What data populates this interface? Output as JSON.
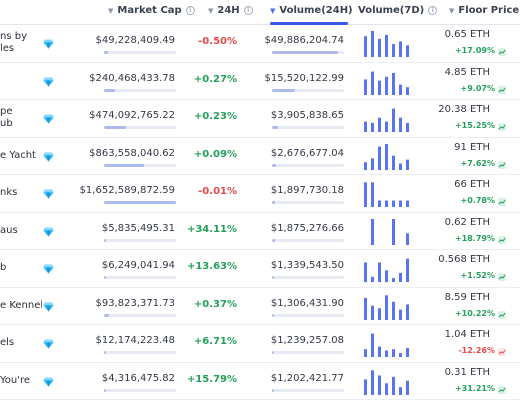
{
  "header": {
    "market_cap": "Market Cap",
    "change_24h": "24H",
    "volume_24h": "Volume(24H)",
    "volume_7d": "Volume(7D)",
    "floor_price": "Floor Price"
  },
  "colors": {
    "accent": "#3a57e8",
    "positive": "#24a05a",
    "negative": "#e5484d",
    "sparkline": "#5a73f0"
  },
  "rows": [
    {
      "name_lines": [
        "ns by",
        "les"
      ],
      "market_cap": "$49,228,409.49",
      "market_cap_bar": 0.05,
      "change": "-0.50%",
      "change_dir": "neg",
      "volume": "$49,886,204.74",
      "volume_bar": 0.92,
      "spark": [
        0.8,
        1.0,
        0.7,
        0.85,
        0.5,
        0.6,
        0.45
      ],
      "floor": "0.65 ETH",
      "floor_change": "+17.09%",
      "floor_dir": "up"
    },
    {
      "name_lines": [
        ""
      ],
      "market_cap": "$240,468,433.78",
      "market_cap_bar": 0.15,
      "change": "+0.27%",
      "change_dir": "pos",
      "volume": "$15,520,122.99",
      "volume_bar": 0.32,
      "spark": [
        0.6,
        0.9,
        0.55,
        0.7,
        0.85,
        0.4,
        0.3
      ],
      "floor": "4.85 ETH",
      "floor_change": "+9.07%",
      "floor_dir": "up"
    },
    {
      "name_lines": [
        "pe",
        "ub"
      ],
      "market_cap": "$474,092,765.22",
      "market_cap_bar": 0.3,
      "change": "+0.23%",
      "change_dir": "pos",
      "volume": "$3,905,838.65",
      "volume_bar": 0.08,
      "spark": [
        0.4,
        0.35,
        0.55,
        0.4,
        0.9,
        0.55,
        0.35
      ],
      "floor": "20.38 ETH",
      "floor_change": "+15.25%",
      "floor_dir": "up"
    },
    {
      "name_lines": [
        "e Yacht"
      ],
      "market_cap": "$863,558,040.62",
      "market_cap_bar": 0.55,
      "change": "+0.09%",
      "change_dir": "pos",
      "volume": "$2,676,677.04",
      "volume_bar": 0.06,
      "spark": [
        0.3,
        0.45,
        0.9,
        1.0,
        0.55,
        0.25,
        0.4
      ],
      "floor": "91 ETH",
      "floor_change": "+7.62%",
      "floor_dir": "up"
    },
    {
      "name_lines": [
        "nks"
      ],
      "market_cap": "$1,652,589,872.59",
      "market_cap_bar": 1.0,
      "change": "-0.01%",
      "change_dir": "neg",
      "volume": "$1,897,730.18",
      "volume_bar": 0.04,
      "spark": [
        0.95,
        0.95,
        0.25,
        0.25,
        0.25,
        0.25,
        0.25
      ],
      "floor": "66 ETH",
      "floor_change": "+0.78%",
      "floor_dir": "up"
    },
    {
      "name_lines": [
        "aus"
      ],
      "market_cap": "$5,835,495.31",
      "market_cap_bar": 0.01,
      "change": "+34.11%",
      "change_dir": "pos",
      "volume": "$1,875,276.66",
      "volume_bar": 0.04,
      "spark": [
        0.0,
        1.0,
        0.0,
        0.0,
        1.0,
        0.0,
        0.45
      ],
      "floor": "0.62 ETH",
      "floor_change": "+18.79%",
      "floor_dir": "up"
    },
    {
      "name_lines": [
        "b"
      ],
      "market_cap": "$6,249,041.94",
      "market_cap_bar": 0.01,
      "change": "+13.63%",
      "change_dir": "pos",
      "volume": "$1,339,543.50",
      "volume_bar": 0.03,
      "spark": [
        0.75,
        0.2,
        0.75,
        0.45,
        0.15,
        0.35,
        0.9
      ],
      "floor": "0.568 ETH",
      "floor_change": "+1.52%",
      "floor_dir": "up"
    },
    {
      "name_lines": [
        "e Kennel"
      ],
      "market_cap": "$93,823,371.73",
      "market_cap_bar": 0.07,
      "change": "+0.37%",
      "change_dir": "pos",
      "volume": "$1,306,431.90",
      "volume_bar": 0.03,
      "spark": [
        0.85,
        0.55,
        0.45,
        0.95,
        0.7,
        0.4,
        0.6
      ],
      "floor": "8.59 ETH",
      "floor_change": "+10.22%",
      "floor_dir": "up"
    },
    {
      "name_lines": [
        "els"
      ],
      "market_cap": "$12,174,223.48",
      "market_cap_bar": 0.02,
      "change": "+6.71%",
      "change_dir": "pos",
      "volume": "$1,239,257.08",
      "volume_bar": 0.03,
      "spark": [
        0.3,
        0.9,
        0.4,
        0.25,
        0.3,
        0.15,
        0.35
      ],
      "floor": "1.04 ETH",
      "floor_change": "-12.26%",
      "floor_dir": "down"
    },
    {
      "name_lines": [
        "You're"
      ],
      "market_cap": "$4,316,475.82",
      "market_cap_bar": 0.01,
      "change": "+15.79%",
      "change_dir": "pos",
      "volume": "$1,202,421.77",
      "volume_bar": 0.03,
      "spark": [
        0.6,
        0.95,
        0.75,
        0.45,
        0.7,
        0.3,
        0.55
      ],
      "floor": "0.31 ETH",
      "floor_change": "+31.21%",
      "floor_dir": "up"
    }
  ]
}
